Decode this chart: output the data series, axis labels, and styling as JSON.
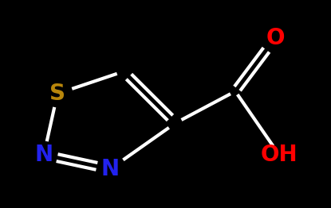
{
  "bg_color": "#000000",
  "bond_color": "#ffffff",
  "bond_width": 3.0,
  "S_color": "#b8860b",
  "N_color": "#2222ee",
  "O_color": "#ff0000",
  "OH_color": "#ff0000",
  "S_label": "S",
  "N1_label": "N",
  "N2_label": "N",
  "O_label": "O",
  "OH_label": "OH",
  "font_size": 20,
  "figsize": [
    4.15,
    2.62
  ],
  "dpi": 100
}
